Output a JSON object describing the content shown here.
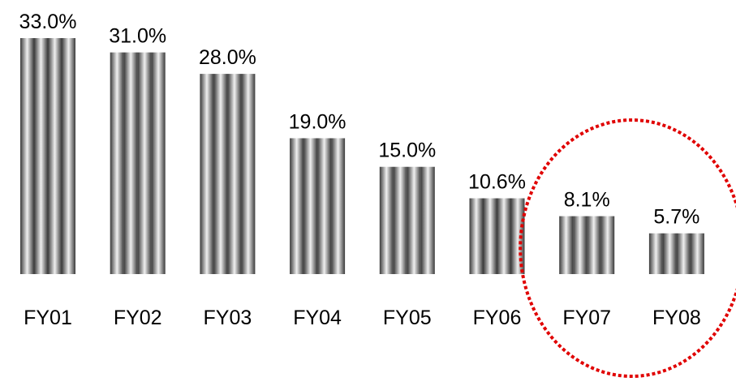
{
  "chart_data": {
    "type": "bar",
    "categories": [
      "FY01",
      "FY02",
      "FY03",
      "FY04",
      "FY05",
      "FY06",
      "FY07",
      "FY08"
    ],
    "values": [
      33.0,
      31.0,
      28.0,
      19.0,
      15.0,
      10.6,
      8.1,
      5.7
    ],
    "value_labels": [
      "33.0%",
      "31.0%",
      "28.0%",
      "19.0%",
      "15.0%",
      "10.6%",
      "8.1%",
      "5.7%"
    ],
    "ylim": [
      0,
      33
    ],
    "grid": false,
    "highlight": {
      "categories": [
        "FY07",
        "FY08"
      ],
      "shape": "dotted-ellipse",
      "color": "#e00000"
    },
    "bar_style": "striped-gradient",
    "bar_colors": {
      "dark": "#3a3a3a",
      "light": "#f0f0f0"
    }
  }
}
